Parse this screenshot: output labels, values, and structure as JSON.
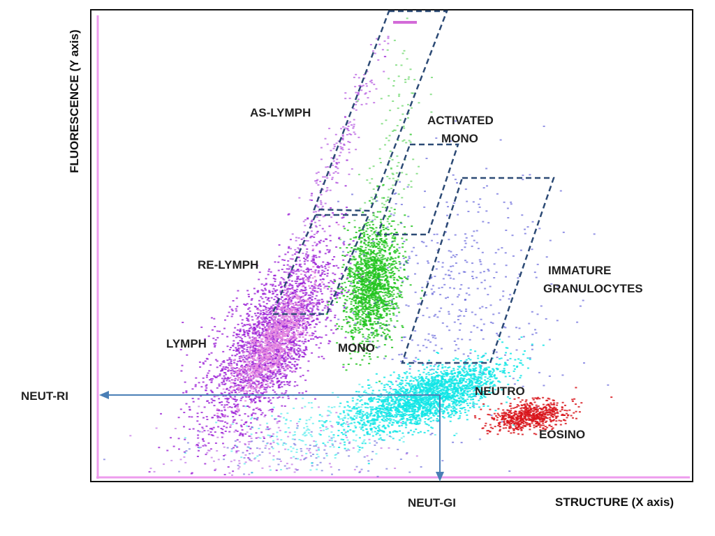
{
  "chart_data": {
    "type": "scatter",
    "xlabel": "STRUCTURE (X axis)",
    "ylabel": "FLUORESCENCE (Y axis)",
    "grid": false,
    "legend": "none",
    "regions": [
      {
        "name": "AS-LYMPH",
        "label": "AS-LYMPH"
      },
      {
        "name": "RE-LYMPH",
        "label": "RE-LYMPH"
      },
      {
        "name": "LYMPH",
        "label": "LYMPH"
      },
      {
        "name": "MONO",
        "label": "MONO"
      },
      {
        "name": "ACTIVATED MONO",
        "label_lines": [
          "ACTIVATED",
          "MONO"
        ]
      },
      {
        "name": "IMMATURE GRANULOCYTES",
        "label_lines": [
          "IMMATURE",
          "GRANULOCYTES"
        ]
      },
      {
        "name": "NEUTRO",
        "label": "NEUTRO"
      },
      {
        "name": "EOSINO",
        "label": "EOSINO"
      }
    ],
    "markers": {
      "neut_ri": "NEUT-RI",
      "neut_gi": "NEUT-GI"
    },
    "colors": {
      "lymph": "#9b1fd6",
      "lymph_core": "#e58be0",
      "mono": "#22c41f",
      "neutro": "#10e6e6",
      "eosino": "#d8141a",
      "ig": "#3b3bd0",
      "gate": "#2c4a75",
      "arrow": "#4a7fb6",
      "axis_frame": "#ee9cee"
    }
  }
}
